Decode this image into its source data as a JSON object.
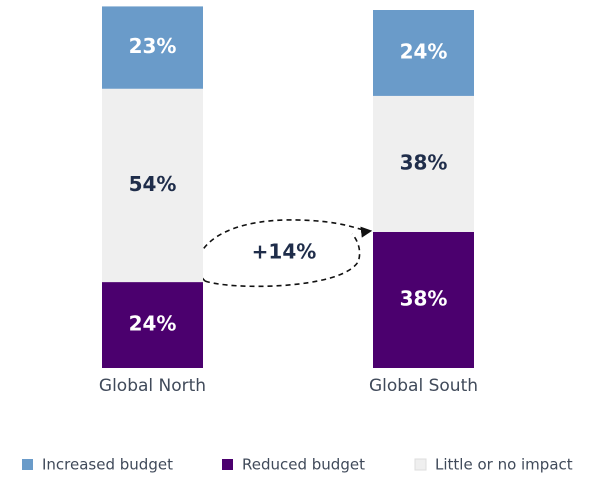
{
  "chart_data": {
    "type": "stacked_bar",
    "categories": [
      "Global North",
      "Global South"
    ],
    "series": [
      {
        "name": "Increased budget",
        "color": "#6a9bc9",
        "values": [
          23,
          24
        ],
        "value_labels": [
          "23%",
          "24%"
        ]
      },
      {
        "name": "Reduced budget",
        "color": "#4b006e",
        "values": [
          24,
          38
        ],
        "value_labels": [
          "24%",
          "38%"
        ]
      },
      {
        "name": "Little or no impact",
        "color": "#efefef",
        "values": [
          54,
          38
        ],
        "value_labels": [
          "54%",
          "38%"
        ]
      }
    ],
    "ylim": [
      0,
      100
    ],
    "annotations": [
      "+14%"
    ]
  }
}
